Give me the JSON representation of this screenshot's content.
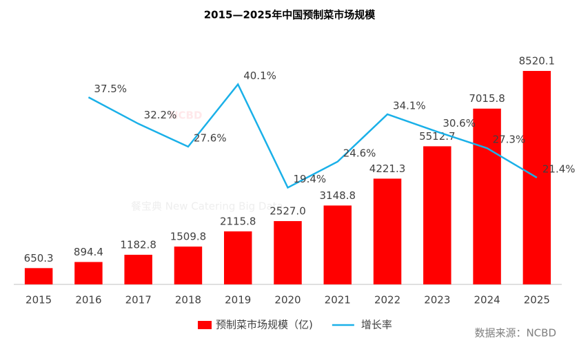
{
  "chart_data": {
    "type": "bar-line",
    "title": "2015—2025年中国预制菜市场规模",
    "watermark": [
      "NCBD",
      "餐宝典 New Catering Big Data"
    ],
    "source": "数据来源：NCBD",
    "categories": [
      "2015",
      "2016",
      "2017",
      "2018",
      "2019",
      "2020",
      "2021",
      "2022",
      "2023",
      "2024",
      "2025"
    ],
    "series": [
      {
        "name": "预制菜市场规模（亿)",
        "type": "bar",
        "color": "#ff0000",
        "values": [
          650.3,
          894.4,
          1182.8,
          1509.8,
          2115.8,
          2527.0,
          3148.8,
          4221.3,
          5512.7,
          7015.8,
          8520.1
        ],
        "value_labels": [
          "650.3",
          "894.4",
          "1182.8",
          "1509.8",
          "2115.8",
          "2527.0",
          "3148.8",
          "4221.3",
          "5512.7",
          "7015.8",
          "8520.1"
        ]
      },
      {
        "name": "增长率",
        "type": "line",
        "axis": "y2",
        "color": "#1ab0e8",
        "values": [
          null,
          37.5,
          32.2,
          27.6,
          40.1,
          19.4,
          24.6,
          34.1,
          30.6,
          27.3,
          21.4
        ],
        "value_labels": [
          null,
          "37.5%",
          "32.2%",
          "27.6%",
          "40.1%",
          "19.4%",
          "24.6%",
          "34.1%",
          "30.6%",
          "27.3%",
          "21.4%"
        ]
      }
    ],
    "ylim": [
      0,
      9400
    ],
    "y2lim": [
      0,
      47.2
    ],
    "legend": "bottom"
  }
}
